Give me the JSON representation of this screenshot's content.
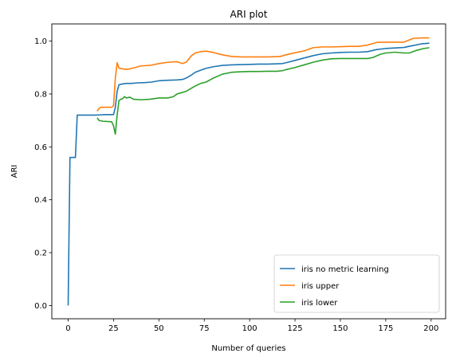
{
  "chart_data": {
    "type": "line",
    "title": "ARI plot",
    "xlabel": "Number of queries",
    "ylabel": "ARI",
    "xlim": [
      -9,
      208
    ],
    "ylim": [
      -0.05,
      1.065
    ],
    "xticks": [
      0,
      25,
      50,
      75,
      100,
      125,
      150,
      175,
      200
    ],
    "xtick_labels": [
      "0",
      "25",
      "50",
      "75",
      "100",
      "125",
      "150",
      "175",
      "200"
    ],
    "yticks": [
      0.0,
      0.2,
      0.4,
      0.6,
      0.8,
      1.0
    ],
    "ytick_labels": [
      "0.0",
      "0.2",
      "0.4",
      "0.6",
      "0.8",
      "1.0"
    ],
    "grid": false,
    "legend_position": "lower-right",
    "series": [
      {
        "name": "iris no metric learning",
        "color": "#1f77b4",
        "points": [
          [
            0,
            0.0
          ],
          [
            1,
            0.56
          ],
          [
            4,
            0.56
          ],
          [
            5,
            0.72
          ],
          [
            10,
            0.72
          ],
          [
            15,
            0.72
          ],
          [
            20,
            0.722
          ],
          [
            25,
            0.722
          ],
          [
            26,
            0.75
          ],
          [
            27,
            0.81
          ],
          [
            28,
            0.835
          ],
          [
            30,
            0.838
          ],
          [
            32,
            0.84
          ],
          [
            35,
            0.84
          ],
          [
            38,
            0.842
          ],
          [
            42,
            0.843
          ],
          [
            46,
            0.845
          ],
          [
            50,
            0.85
          ],
          [
            55,
            0.852
          ],
          [
            60,
            0.853
          ],
          [
            63,
            0.855
          ],
          [
            65,
            0.86
          ],
          [
            68,
            0.872
          ],
          [
            70,
            0.882
          ],
          [
            73,
            0.89
          ],
          [
            76,
            0.897
          ],
          [
            80,
            0.903
          ],
          [
            85,
            0.908
          ],
          [
            90,
            0.91
          ],
          [
            95,
            0.911
          ],
          [
            100,
            0.912
          ],
          [
            105,
            0.913
          ],
          [
            110,
            0.913
          ],
          [
            115,
            0.914
          ],
          [
            118,
            0.915
          ],
          [
            120,
            0.918
          ],
          [
            125,
            0.927
          ],
          [
            130,
            0.936
          ],
          [
            135,
            0.945
          ],
          [
            140,
            0.952
          ],
          [
            145,
            0.955
          ],
          [
            150,
            0.957
          ],
          [
            155,
            0.958
          ],
          [
            160,
            0.958
          ],
          [
            165,
            0.96
          ],
          [
            170,
            0.968
          ],
          [
            175,
            0.972
          ],
          [
            180,
            0.974
          ],
          [
            185,
            0.976
          ],
          [
            190,
            0.983
          ],
          [
            195,
            0.99
          ],
          [
            199,
            0.992
          ]
        ]
      },
      {
        "name": "iris upper",
        "color": "#ff7f0e",
        "points": [
          [
            16,
            0.735
          ],
          [
            17,
            0.745
          ],
          [
            18,
            0.75
          ],
          [
            20,
            0.75
          ],
          [
            24,
            0.75
          ],
          [
            25,
            0.755
          ],
          [
            26,
            0.86
          ],
          [
            27,
            0.918
          ],
          [
            28,
            0.898
          ],
          [
            30,
            0.895
          ],
          [
            32,
            0.893
          ],
          [
            34,
            0.895
          ],
          [
            37,
            0.9
          ],
          [
            40,
            0.906
          ],
          [
            45,
            0.908
          ],
          [
            50,
            0.915
          ],
          [
            55,
            0.92
          ],
          [
            60,
            0.922
          ],
          [
            63,
            0.915
          ],
          [
            65,
            0.92
          ],
          [
            68,
            0.945
          ],
          [
            70,
            0.955
          ],
          [
            73,
            0.96
          ],
          [
            76,
            0.962
          ],
          [
            80,
            0.957
          ],
          [
            85,
            0.948
          ],
          [
            90,
            0.942
          ],
          [
            95,
            0.94
          ],
          [
            100,
            0.94
          ],
          [
            110,
            0.94
          ],
          [
            117,
            0.942
          ],
          [
            120,
            0.948
          ],
          [
            125,
            0.956
          ],
          [
            130,
            0.963
          ],
          [
            135,
            0.975
          ],
          [
            140,
            0.978
          ],
          [
            145,
            0.978
          ],
          [
            150,
            0.979
          ],
          [
            155,
            0.98
          ],
          [
            160,
            0.98
          ],
          [
            165,
            0.985
          ],
          [
            170,
            0.995
          ],
          [
            175,
            0.996
          ],
          [
            180,
            0.996
          ],
          [
            185,
            0.996
          ],
          [
            190,
            1.01
          ],
          [
            195,
            1.012
          ],
          [
            199,
            1.012
          ]
        ]
      },
      {
        "name": "iris lower",
        "color": "#2ca02c",
        "points": [
          [
            16,
            0.71
          ],
          [
            17,
            0.7
          ],
          [
            19,
            0.697
          ],
          [
            24,
            0.695
          ],
          [
            25,
            0.68
          ],
          [
            26,
            0.648
          ],
          [
            27,
            0.72
          ],
          [
            28,
            0.775
          ],
          [
            29,
            0.78
          ],
          [
            30,
            0.782
          ],
          [
            31,
            0.79
          ],
          [
            32,
            0.785
          ],
          [
            34,
            0.788
          ],
          [
            36,
            0.78
          ],
          [
            40,
            0.778
          ],
          [
            45,
            0.78
          ],
          [
            50,
            0.785
          ],
          [
            55,
            0.785
          ],
          [
            58,
            0.79
          ],
          [
            60,
            0.8
          ],
          [
            65,
            0.81
          ],
          [
            70,
            0.83
          ],
          [
            73,
            0.84
          ],
          [
            76,
            0.845
          ],
          [
            80,
            0.86
          ],
          [
            85,
            0.875
          ],
          [
            90,
            0.882
          ],
          [
            95,
            0.884
          ],
          [
            100,
            0.885
          ],
          [
            105,
            0.885
          ],
          [
            110,
            0.886
          ],
          [
            115,
            0.886
          ],
          [
            118,
            0.888
          ],
          [
            120,
            0.892
          ],
          [
            125,
            0.9
          ],
          [
            130,
            0.91
          ],
          [
            135,
            0.92
          ],
          [
            140,
            0.928
          ],
          [
            145,
            0.933
          ],
          [
            150,
            0.934
          ],
          [
            155,
            0.934
          ],
          [
            160,
            0.934
          ],
          [
            165,
            0.934
          ],
          [
            168,
            0.938
          ],
          [
            172,
            0.95
          ],
          [
            175,
            0.955
          ],
          [
            180,
            0.958
          ],
          [
            185,
            0.955
          ],
          [
            188,
            0.955
          ],
          [
            192,
            0.965
          ],
          [
            196,
            0.972
          ],
          [
            199,
            0.975
          ]
        ]
      }
    ]
  }
}
